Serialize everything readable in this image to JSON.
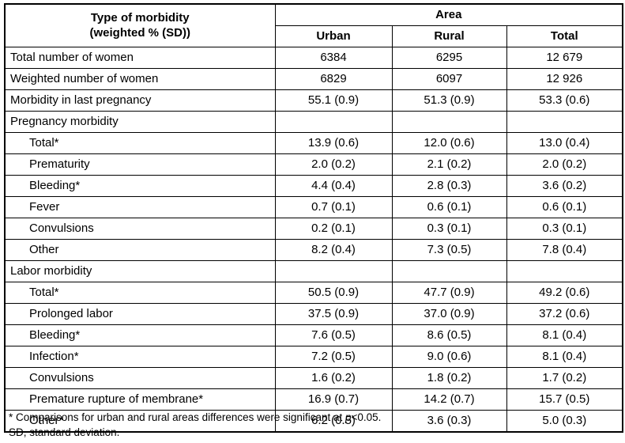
{
  "colors": {
    "background": "#ffffff",
    "text": "#000000",
    "border": "#000000"
  },
  "table": {
    "header": {
      "title_line1": "Type of morbidity",
      "title_line2": "(weighted % (SD))",
      "area_label": "Area",
      "columns": [
        "Urban",
        "Rural",
        "Total"
      ]
    },
    "rows": [
      {
        "label": "Total number of women",
        "type": "data",
        "urban": "6384",
        "rural": "6295",
        "total": "12 679"
      },
      {
        "label": "Weighted number of women",
        "type": "data",
        "urban": "6829",
        "rural": "6097",
        "total": "12 926"
      },
      {
        "label": "Morbidity in last pregnancy",
        "type": "data",
        "urban": "55.1 (0.9)",
        "rural": "51.3 (0.9)",
        "total": "53.3 (0.6)"
      },
      {
        "label": "Pregnancy morbidity",
        "type": "section",
        "urban": "",
        "rural": "",
        "total": ""
      },
      {
        "label": "Total*",
        "type": "sub",
        "urban": "13.9 (0.6)",
        "rural": "12.0 (0.6)",
        "total": "13.0 (0.4)"
      },
      {
        "label": "Prematurity",
        "type": "sub",
        "urban": "2.0 (0.2)",
        "rural": "2.1 (0.2)",
        "total": "2.0 (0.2)"
      },
      {
        "label": "Bleeding*",
        "type": "sub",
        "urban": "4.4 (0.4)",
        "rural": "2.8 (0.3)",
        "total": "3.6 (0.2)"
      },
      {
        "label": "Fever",
        "type": "sub",
        "urban": "0.7 (0.1)",
        "rural": "0.6 (0.1)",
        "total": "0.6 (0.1)"
      },
      {
        "label": "Convulsions",
        "type": "sub",
        "urban": "0.2 (0.1)",
        "rural": "0.3 (0.1)",
        "total": "0.3 (0.1)"
      },
      {
        "label": "Other",
        "type": "sub",
        "urban": "8.2 (0.4)",
        "rural": "7.3 (0.5)",
        "total": "7.8 (0.4)"
      },
      {
        "label": "Labor morbidity",
        "type": "section",
        "urban": "",
        "rural": "",
        "total": ""
      },
      {
        "label": "Total*",
        "type": "sub",
        "urban": "50.5 (0.9)",
        "rural": "47.7 (0.9)",
        "total": "49.2 (0.6)"
      },
      {
        "label": "Prolonged labor",
        "type": "sub",
        "urban": "37.5 (0.9)",
        "rural": "37.0 (0.9)",
        "total": "37.2 (0.6)"
      },
      {
        "label": "Bleeding*",
        "type": "sub",
        "urban": "7.6 (0.5)",
        "rural": "8.6 (0.5)",
        "total": "8.1 (0.4)"
      },
      {
        "label": "Infection*",
        "type": "sub",
        "urban": "7.2 (0.5)",
        "rural": "9.0 (0.6)",
        "total": "8.1 (0.4)"
      },
      {
        "label": "Convulsions",
        "type": "sub",
        "urban": "1.6 (0.2)",
        "rural": "1.8 (0.2)",
        "total": "1.7 (0.2)"
      },
      {
        "label": "Premature rupture of membrane*",
        "type": "sub",
        "urban": "16.9 (0.7)",
        "rural": "14.2 (0.7)",
        "total": "15.7 (0.5)"
      },
      {
        "label": "Other*",
        "type": "sub",
        "urban": "6.2 (0.5)",
        "rural": "3.6 (0.3)",
        "total": "5.0 (0.3)"
      }
    ]
  },
  "footnotes": {
    "sig_prefix": "* Comparisons for urban and rural areas differences were significant at ",
    "sig_italic": "p",
    "sig_suffix": "<0.05.",
    "sd": "SD, standard deviation."
  }
}
